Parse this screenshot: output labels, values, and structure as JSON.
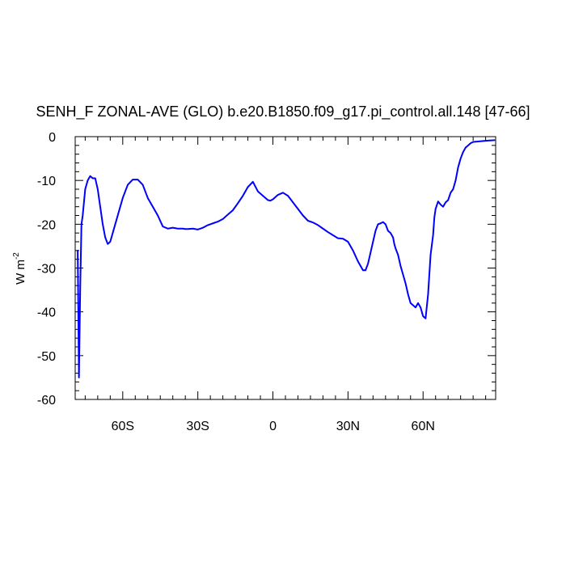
{
  "chart_data": {
    "type": "line",
    "title": "SENH_F ZONAL-AVE (GLO) b.e20.B1850.f09_g17.pi_control.all.148 [47-66]",
    "ylabel_main": "W m",
    "ylabel_sup": "-2",
    "xlabel": "",
    "xlim": [
      -79,
      89
    ],
    "ylim": [
      -60,
      0
    ],
    "x_ticks": [
      {
        "value": -60,
        "label": "60S"
      },
      {
        "value": -30,
        "label": "30S"
      },
      {
        "value": 0,
        "label": "0"
      },
      {
        "value": 30,
        "label": "30N"
      },
      {
        "value": 60,
        "label": "60N"
      }
    ],
    "y_ticks": [
      {
        "value": 0,
        "label": "0"
      },
      {
        "value": -10,
        "label": "-10"
      },
      {
        "value": -20,
        "label": "-20"
      },
      {
        "value": -30,
        "label": "-30"
      },
      {
        "value": -40,
        "label": "-40"
      },
      {
        "value": -50,
        "label": "-50"
      },
      {
        "value": -60,
        "label": "-60"
      }
    ],
    "grid": false,
    "line_color": "#0000ff",
    "series": [
      {
        "x": [
          -78.0,
          -77.5,
          -77.0,
          -76.5,
          -76.0,
          -75.5,
          -75.0,
          -74.0,
          -73.0,
          -72.0,
          -71.0,
          -70.0,
          -69.0,
          -68.5,
          -68.0,
          -67.0,
          -66.0,
          -65.0,
          -64.0,
          -63.0,
          -62.0,
          -61.0,
          -60.0,
          -58.0,
          -56.0,
          -54.0,
          -52.0,
          -50.0,
          -48.0,
          -46.0,
          -44.0,
          -42.0,
          -40.0,
          -38.0,
          -37.0,
          -36.0,
          -35.0,
          -34.0,
          -32.0,
          -30.0,
          -28.0,
          -26.0,
          -24.0,
          -22.0,
          -20.0,
          -18.0,
          -16.0,
          -14.0,
          -12.0,
          -10.0,
          -8.0,
          -6.0,
          -4.0,
          -2.0,
          -1.0,
          0.0,
          1.0,
          2.0,
          4.0,
          6.0,
          8.0,
          10.0,
          12.0,
          14.0,
          16.0,
          18.0,
          20.0,
          22.0,
          24.0,
          26.0,
          28.0,
          30.0,
          32.0,
          34.0,
          36.0,
          37.0,
          38.0,
          39.0,
          40.0,
          41.0,
          42.0,
          43.0,
          44.0,
          45.0,
          46.0,
          47.0,
          48.0,
          48.5,
          49.0,
          50.0,
          51.0,
          52.0,
          53.0,
          54.0,
          55.0,
          56.0,
          57.0,
          58.0,
          59.0,
          60.0,
          61.0,
          62.0,
          63.0,
          64.0,
          64.5,
          65.0,
          66.0,
          67.0,
          68.0,
          69.0,
          70.0,
          71.0,
          72.0,
          73.0,
          74.0,
          75.0,
          76.0,
          77.0,
          78.0,
          79.0,
          80.0,
          82.0,
          84.0,
          86.0,
          88.5
        ],
        "y": [
          -26.0,
          -55.0,
          -35.0,
          -20.0,
          -18.0,
          -15.0,
          -12.0,
          -10.0,
          -9.0,
          -9.5,
          -9.5,
          -12.0,
          -16.0,
          -18.0,
          -20.0,
          -23.0,
          -24.5,
          -24.0,
          -22.0,
          -20.0,
          -18.0,
          -16.0,
          -14.0,
          -11.0,
          -9.8,
          -9.8,
          -11.0,
          -14.0,
          -16.0,
          -18.0,
          -20.5,
          -21.0,
          -20.8,
          -21.0,
          -21.0,
          -21.0,
          -21.1,
          -21.1,
          -21.0,
          -21.2,
          -20.8,
          -20.2,
          -19.8,
          -19.4,
          -18.8,
          -17.8,
          -16.8,
          -15.2,
          -13.5,
          -11.5,
          -10.3,
          -12.5,
          -13.5,
          -14.5,
          -14.6,
          -14.3,
          -13.8,
          -13.3,
          -12.8,
          -13.5,
          -15.0,
          -16.5,
          -18.0,
          -19.2,
          -19.6,
          -20.2,
          -21.0,
          -21.8,
          -22.5,
          -23.2,
          -23.3,
          -24.0,
          -26.0,
          -28.5,
          -30.5,
          -30.5,
          -29.0,
          -26.5,
          -24.0,
          -21.5,
          -20.0,
          -19.8,
          -19.5,
          -20.0,
          -21.5,
          -22.0,
          -23.0,
          -24.5,
          -25.5,
          -27.0,
          -29.5,
          -31.5,
          -33.5,
          -36.0,
          -38.0,
          -38.5,
          -39.0,
          -38.0,
          -39.0,
          -41.0,
          -41.5,
          -36.0,
          -27.0,
          -22.5,
          -18.5,
          -16.5,
          -14.8,
          -15.5,
          -16.0,
          -15.0,
          -14.5,
          -12.8,
          -12.0,
          -10.0,
          -7.0,
          -5.0,
          -3.5,
          -2.5,
          -2.0,
          -1.5,
          -1.2,
          -1.1,
          -1.0,
          -0.9,
          -0.8
        ]
      }
    ]
  }
}
